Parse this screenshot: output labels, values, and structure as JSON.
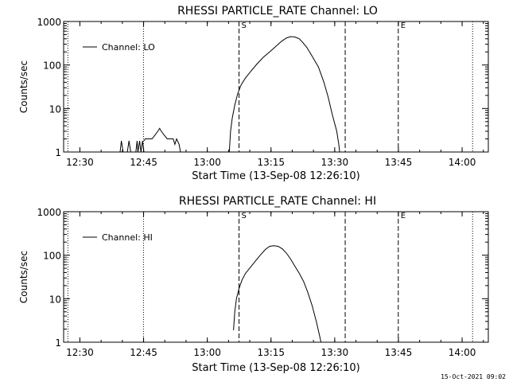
{
  "footer": {
    "timestamp": "15-Oct-2021 09:02"
  },
  "chart_data": [
    {
      "type": "line",
      "title": "RHESSI PARTICLE_RATE Channel: LO",
      "xlabel": "Start Time (13-Sep-08 12:26:10)",
      "ylabel": "Counts/sec",
      "legend": {
        "label": "Channel: LO",
        "placement": "top-left"
      },
      "x_unit": "minutes after 12:26:10",
      "xlim": [
        0,
        100
      ],
      "ylim": [
        1,
        1000
      ],
      "yscale": "log",
      "xticks": [
        {
          "value": 3.83,
          "label": "12:30"
        },
        {
          "value": 18.83,
          "label": "12:45"
        },
        {
          "value": 33.83,
          "label": "13:00"
        },
        {
          "value": 48.83,
          "label": "13:15"
        },
        {
          "value": 63.83,
          "label": "13:30"
        },
        {
          "value": 78.83,
          "label": "13:45"
        },
        {
          "value": 93.83,
          "label": "14:00"
        }
      ],
      "yticks": [
        {
          "value": 1,
          "label": "1"
        },
        {
          "value": 10,
          "label": "10"
        },
        {
          "value": 100,
          "label": "100"
        },
        {
          "value": 1000,
          "label": "1000"
        }
      ],
      "vlines": [
        {
          "x": 1.0,
          "style": "dotted",
          "label": ""
        },
        {
          "x": 18.8,
          "style": "dotted",
          "label": ""
        },
        {
          "x": 41.3,
          "style": "dashed",
          "label": "S"
        },
        {
          "x": 66.3,
          "style": "dashed",
          "label": ""
        },
        {
          "x": 78.8,
          "style": "dashed",
          "label": "E"
        },
        {
          "x": 96.3,
          "style": "dotted",
          "label": ""
        }
      ],
      "segments": [
        {
          "x": [
            13.3,
            13.6,
            14.0
          ],
          "y": [
            1,
            1.8,
            1
          ]
        },
        {
          "x": [
            15.0,
            15.4,
            15.8
          ],
          "y": [
            1,
            1.8,
            1
          ]
        },
        {
          "x": [
            17.0,
            17.3,
            17.5,
            17.9,
            18.2,
            18.6,
            18.9
          ],
          "y": [
            1,
            1.8,
            1,
            1.8,
            1,
            1.8,
            1
          ]
        },
        {
          "x": [
            18.9,
            19.2,
            20.0,
            20.8,
            21.6,
            22.2,
            22.6,
            23.0,
            23.6,
            24.4,
            25.2,
            25.8,
            26.2,
            26.6,
            27.2,
            27.5,
            28.0
          ],
          "y": [
            1.8,
            2.0,
            2.0,
            2.0,
            2.5,
            3.0,
            3.5,
            3.0,
            2.5,
            2.0,
            2.0,
            2.0,
            1.5,
            2.0,
            1.5,
            1.0,
            1.0
          ]
        },
        {
          "x": [
            39.0,
            39.3,
            39.7,
            40.3,
            41.0,
            41.8,
            42.8,
            44.0,
            45.5,
            47.0,
            48.5,
            50.0,
            51.3,
            52.5,
            53.5,
            54.5,
            55.5,
            56.3,
            57.3,
            58.5,
            60.0,
            61.3,
            62.3,
            63.3,
            64.3,
            64.8,
            65.0
          ],
          "y": [
            1,
            3,
            6,
            12,
            22,
            35,
            50,
            70,
            105,
            150,
            200,
            270,
            350,
            420,
            450,
            440,
            400,
            330,
            250,
            160,
            90,
            40,
            18,
            7,
            3,
            1.5,
            1
          ]
        }
      ]
    },
    {
      "type": "line",
      "title": "RHESSI PARTICLE_RATE Channel: HI",
      "xlabel": "Start Time (13-Sep-08 12:26:10)",
      "ylabel": "Counts/sec",
      "legend": {
        "label": "Channel: HI",
        "placement": "top-left"
      },
      "x_unit": "minutes after 12:26:10",
      "xlim": [
        0,
        100
      ],
      "ylim": [
        1,
        1000
      ],
      "yscale": "log",
      "xticks": [
        {
          "value": 3.83,
          "label": "12:30"
        },
        {
          "value": 18.83,
          "label": "12:45"
        },
        {
          "value": 33.83,
          "label": "13:00"
        },
        {
          "value": 48.83,
          "label": "13:15"
        },
        {
          "value": 63.83,
          "label": "13:30"
        },
        {
          "value": 78.83,
          "label": "13:45"
        },
        {
          "value": 93.83,
          "label": "14:00"
        }
      ],
      "yticks": [
        {
          "value": 1,
          "label": "1"
        },
        {
          "value": 10,
          "label": "10"
        },
        {
          "value": 100,
          "label": "100"
        },
        {
          "value": 1000,
          "label": "1000"
        }
      ],
      "vlines": [
        {
          "x": 1.0,
          "style": "dotted",
          "label": ""
        },
        {
          "x": 18.8,
          "style": "dotted",
          "label": ""
        },
        {
          "x": 41.3,
          "style": "dashed",
          "label": "S"
        },
        {
          "x": 66.3,
          "style": "dashed",
          "label": ""
        },
        {
          "x": 78.8,
          "style": "dashed",
          "label": "E"
        },
        {
          "x": 96.3,
          "style": "dotted",
          "label": ""
        }
      ],
      "segments": [
        {
          "x": [
            40.0,
            40.3,
            40.7,
            41.3,
            42.0,
            42.8,
            43.8,
            45.0,
            46.3,
            47.5,
            48.5,
            49.5,
            50.5,
            51.5,
            52.5,
            53.5,
            54.5,
            55.5,
            56.5,
            57.5,
            58.5,
            59.5,
            60.2,
            60.6
          ],
          "y": [
            1.9,
            5,
            10,
            17,
            27,
            38,
            50,
            70,
            100,
            135,
            160,
            165,
            160,
            140,
            110,
            80,
            55,
            38,
            25,
            14,
            7,
            3,
            1.5,
            1
          ]
        }
      ]
    }
  ]
}
